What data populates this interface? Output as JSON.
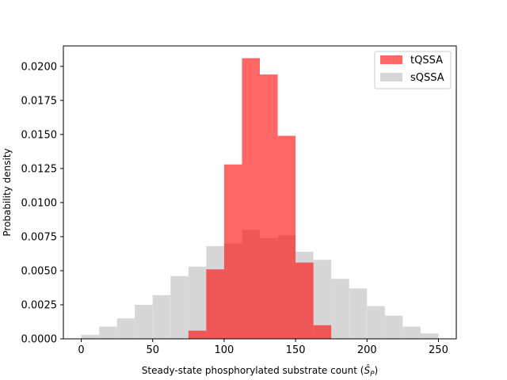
{
  "chart_data": {
    "type": "histogram",
    "xlabel_main": "Steady-state phosphorylated substrate count (",
    "xlabel_symbol": "Ŝ",
    "xlabel_sub": "P",
    "xlabel_close": ")",
    "ylabel": "Probability density",
    "xlim": [
      -12.5,
      262.5
    ],
    "ylim": [
      0,
      0.0215
    ],
    "xticks": [
      0,
      50,
      100,
      150,
      200,
      250
    ],
    "xtick_labels": [
      "0",
      "50",
      "100",
      "150",
      "200",
      "250"
    ],
    "yticks": [
      0,
      0.0025,
      0.005,
      0.0075,
      0.01,
      0.0125,
      0.015,
      0.0175,
      0.02
    ],
    "ytick_labels": [
      "0.0000",
      "0.0025",
      "0.0050",
      "0.0075",
      "0.0100",
      "0.0125",
      "0.0150",
      "0.0175",
      "0.0200"
    ],
    "legend_position": "top-right",
    "series": [
      {
        "name": "sQSSA",
        "color": "#d3d3d3",
        "alpha": 0.9,
        "bin_edges": [
          0.0,
          12.5,
          25.0,
          37.5,
          50.0,
          62.5,
          75.0,
          87.5,
          100.0,
          112.5,
          125.0,
          137.5,
          150.0,
          162.5,
          175.0,
          187.5,
          200.0,
          212.5,
          225.0,
          237.5,
          250.0
        ],
        "values": [
          0.0003,
          0.0009,
          0.0015,
          0.0025,
          0.0032,
          0.0046,
          0.0053,
          0.0068,
          0.007,
          0.008,
          0.0074,
          0.0076,
          0.0064,
          0.0058,
          0.0044,
          0.0037,
          0.0024,
          0.0017,
          0.0009,
          0.0004
        ]
      },
      {
        "name": "tQSSA",
        "color": "#ff0000",
        "alpha": 0.6,
        "bin_edges": [
          75.0,
          87.5,
          100.0,
          112.5,
          125.0,
          137.5,
          150.0,
          162.5,
          175.0
        ],
        "values": [
          0.0006,
          0.0051,
          0.0128,
          0.0206,
          0.0194,
          0.0149,
          0.0056,
          0.001
        ]
      }
    ],
    "legend_order": [
      "tQSSA",
      "sQSSA"
    ]
  }
}
